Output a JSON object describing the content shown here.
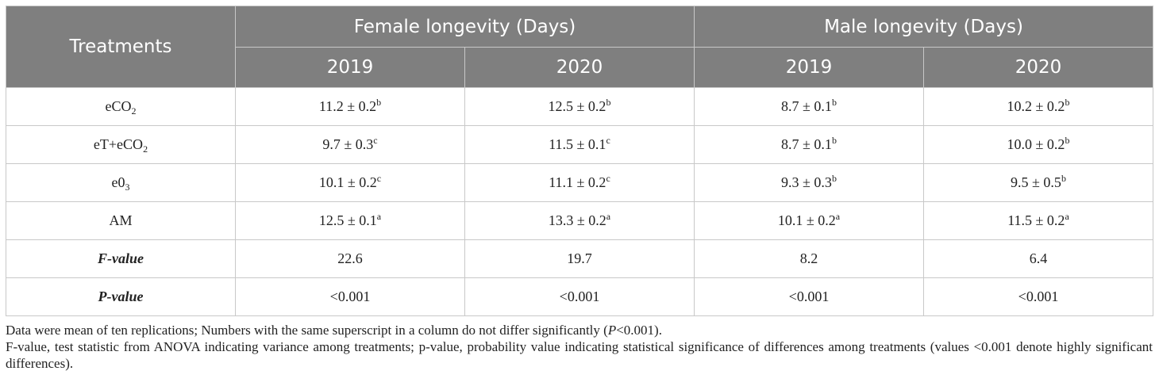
{
  "header": {
    "treatments_label": "Treatments",
    "female_label": "Female longevity (Days)",
    "male_label": "Male longevity (Days)",
    "years": [
      "2019",
      "2020",
      "2019",
      "2020"
    ]
  },
  "rows": [
    {
      "label_parts": [
        "eCO",
        "2",
        ""
      ],
      "cells": [
        {
          "value": "11.2 ± 0.2",
          "sup": "b"
        },
        {
          "value": "12.5 ± 0.2",
          "sup": "b"
        },
        {
          "value": "8.7 ± 0.1",
          "sup": "b"
        },
        {
          "value": "10.2 ± 0.2",
          "sup": "b"
        }
      ]
    },
    {
      "label_parts": [
        "eT+eCO",
        "2",
        ""
      ],
      "cells": [
        {
          "value": "9.7 ± 0.3",
          "sup": "c"
        },
        {
          "value": "11.5 ± 0.1",
          "sup": "c"
        },
        {
          "value": "8.7 ± 0.1",
          "sup": "b"
        },
        {
          "value": "10.0 ± 0.2",
          "sup": "b"
        }
      ]
    },
    {
      "label_parts": [
        "e0",
        "3",
        ""
      ],
      "cells": [
        {
          "value": "10.1 ± 0.2",
          "sup": "c"
        },
        {
          "value": "11.1 ± 0.2",
          "sup": "c"
        },
        {
          "value": "9.3 ± 0.3",
          "sup": "b"
        },
        {
          "value": "9.5 ± 0.5",
          "sup": "b"
        }
      ]
    },
    {
      "label_parts": [
        "AM",
        "",
        ""
      ],
      "cells": [
        {
          "value": "12.5 ± 0.1",
          "sup": "a"
        },
        {
          "value": "13.3 ± 0.2",
          "sup": "a"
        },
        {
          "value": "10.1 ± 0.2",
          "sup": "a"
        },
        {
          "value": "11.5 ± 0.2",
          "sup": "a"
        }
      ]
    }
  ],
  "stats": [
    {
      "label": "F-value",
      "values": [
        "22.6",
        "19.7",
        "8.2",
        "6.4"
      ]
    },
    {
      "label": "P-value",
      "values": [
        "<0.001",
        "<0.001",
        "<0.001",
        "<0.001"
      ]
    }
  ],
  "notes": {
    "line1_a": "Data were mean of ten replications; Numbers with the same superscript in a column do not differ significantly (",
    "line1_p": "P",
    "line1_b": "<0.001).",
    "line2": "F-value, test statistic from ANOVA indicating variance among treatments; p-value, probability value indicating statistical significance of differences among treatments (values <0.001 denote highly significant differences)."
  },
  "colors": {
    "header_bg": "#7f7f7f",
    "header_text": "#ffffff",
    "border": "#c8c8c8"
  }
}
